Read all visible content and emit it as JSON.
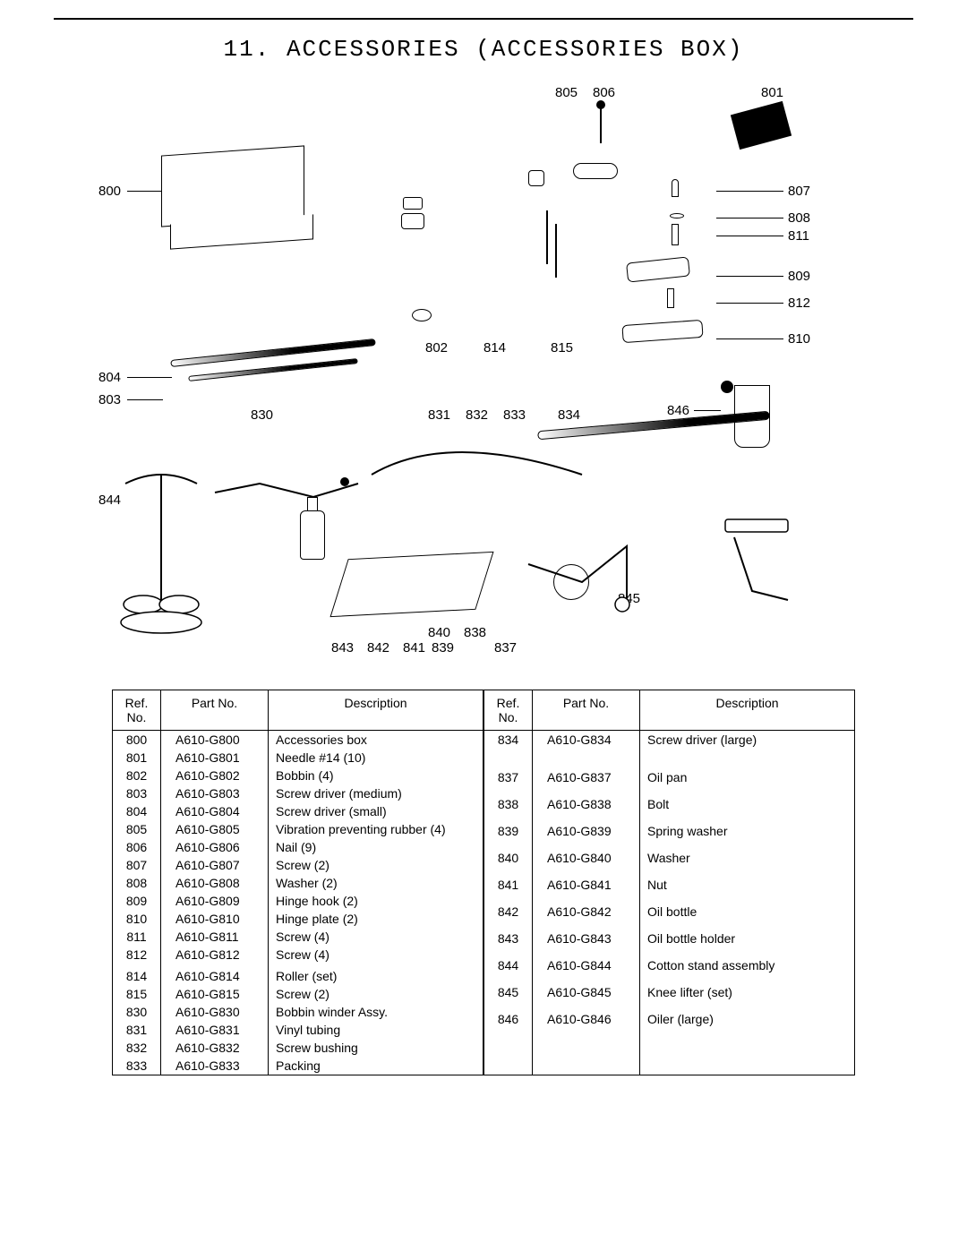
{
  "title": "11.  ACCESSORIES (ACCESSORIES  BOX)",
  "diagram": {
    "callouts_top": [
      "805",
      "806",
      "801"
    ],
    "callouts_left": [
      "800",
      "804",
      "803",
      "844"
    ],
    "callouts_right": [
      "807",
      "808",
      "811",
      "809",
      "812",
      "810"
    ],
    "callouts_mid": [
      "802",
      "814",
      "815",
      "830",
      "831",
      "832",
      "833",
      "834",
      "846",
      "845"
    ],
    "callouts_bottom": [
      "843",
      "842",
      "841",
      "840",
      "839",
      "838",
      "837"
    ]
  },
  "table_left": {
    "headers": [
      "Ref. No.",
      "Part No.",
      "Description"
    ],
    "rows": [
      [
        "800",
        "A610-G800",
        "Accessories box"
      ],
      [
        "801",
        "A610-G801",
        "Needle #14 (10)"
      ],
      [
        "802",
        "A610-G802",
        "Bobbin (4)"
      ],
      [
        "803",
        "A610-G803",
        "Screw driver (medium)"
      ],
      [
        "804",
        "A610-G804",
        "Screw driver (small)"
      ],
      [
        "805",
        "A610-G805",
        "Vibration preventing rubber (4)"
      ],
      [
        "806",
        "A610-G806",
        "Nail (9)"
      ],
      [
        "807",
        "A610-G807",
        "Screw (2)"
      ],
      [
        "808",
        "A610-G808",
        "Washer (2)"
      ],
      [
        "809",
        "A610-G809",
        "Hinge hook (2)"
      ],
      [
        "810",
        "A610-G810",
        "Hinge plate (2)"
      ],
      [
        "811",
        "A610-G811",
        "Screw (4)"
      ],
      [
        "812",
        "A610-G812",
        "Screw (4)"
      ],
      [
        "",
        "",
        ""
      ],
      [
        "814",
        "A610-G814",
        "Roller (set)"
      ],
      [
        "815",
        "A610-G815",
        "Screw (2)"
      ],
      [
        "830",
        "A610-G830",
        "Bobbin winder Assy."
      ],
      [
        "831",
        "A610-G831",
        "Vinyl tubing"
      ],
      [
        "832",
        "A610-G832",
        "Screw bushing"
      ],
      [
        "833",
        "A610-G833",
        "Packing"
      ]
    ]
  },
  "table_right": {
    "headers": [
      "Ref. No.",
      "Part No.",
      "Description"
    ],
    "rows": [
      [
        "834",
        "A610-G834",
        "Screw driver (large)"
      ],
      [
        "",
        "",
        ""
      ],
      [
        "",
        "",
        ""
      ],
      [
        "837",
        "A610-G837",
        "Oil pan"
      ],
      [
        "838",
        "A610-G838",
        "Bolt"
      ],
      [
        "839",
        "A610-G839",
        "Spring washer"
      ],
      [
        "840",
        "A610-G840",
        "Washer"
      ],
      [
        "841",
        "A610-G841",
        "Nut"
      ],
      [
        "842",
        "A610-G842",
        "Oil bottle"
      ],
      [
        "843",
        "A610-G843",
        "Oil bottle holder"
      ],
      [
        "844",
        "A610-G844",
        "Cotton stand assembly"
      ],
      [
        "845",
        "A610-G845",
        "Knee lifter (set)"
      ],
      [
        "846",
        "A610-G846",
        "Oiler (large)"
      ],
      [
        "",
        "",
        ""
      ],
      [
        "",
        "",
        ""
      ],
      [
        "",
        "",
        ""
      ],
      [
        "",
        "",
        ""
      ],
      [
        "",
        "",
        ""
      ],
      [
        "",
        "",
        ""
      ],
      [
        "",
        "",
        ""
      ]
    ]
  }
}
